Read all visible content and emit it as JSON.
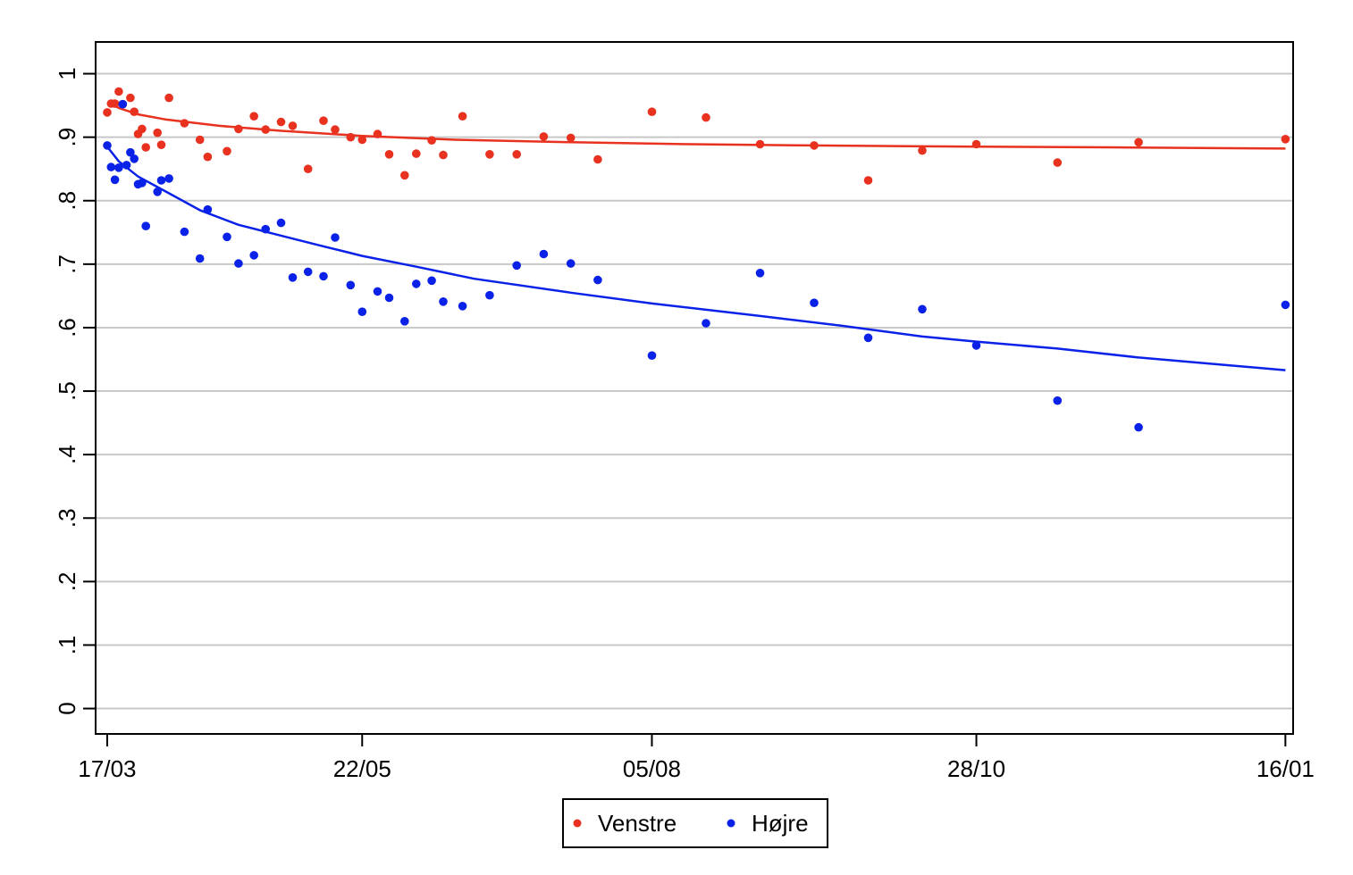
{
  "chart_data": {
    "type": "scatter",
    "title": "",
    "xlabel": "",
    "ylabel": "",
    "x_type": "date",
    "xlim": [
      "2020-03-14",
      "2021-01-18"
    ],
    "ylim": [
      -0.04,
      1.05
    ],
    "x_ticks": [
      {
        "date": "2020-03-17",
        "label": "17/03"
      },
      {
        "date": "2020-05-22",
        "label": "22/05"
      },
      {
        "date": "2020-08-05",
        "label": "05/08"
      },
      {
        "date": "2020-10-28",
        "label": "28/10"
      },
      {
        "date": "2021-01-16",
        "label": "16/01"
      }
    ],
    "y_ticks": [
      {
        "value": 0,
        "label": "0"
      },
      {
        "value": 0.1,
        "label": ".1"
      },
      {
        "value": 0.2,
        "label": ".2"
      },
      {
        "value": 0.3,
        "label": ".3"
      },
      {
        "value": 0.4,
        "label": ".4"
      },
      {
        "value": 0.5,
        "label": ".5"
      },
      {
        "value": 0.6,
        "label": ".6"
      },
      {
        "value": 0.7,
        "label": ".7"
      },
      {
        "value": 0.8,
        "label": ".8"
      },
      {
        "value": 0.9,
        "label": ".9"
      },
      {
        "value": 1,
        "label": "1"
      }
    ],
    "grid": true,
    "legend_position": "bottom",
    "series": [
      {
        "name": "Venstre",
        "color": "#e8321f",
        "points": [
          [
            "2020-03-17",
            0.939
          ],
          [
            "2020-03-18",
            0.953
          ],
          [
            "2020-03-19",
            0.953
          ],
          [
            "2020-03-20",
            0.972
          ],
          [
            "2020-03-21",
            0.952
          ],
          [
            "2020-03-23",
            0.962
          ],
          [
            "2020-03-24",
            0.94
          ],
          [
            "2020-03-25",
            0.905
          ],
          [
            "2020-03-26",
            0.913
          ],
          [
            "2020-03-27",
            0.884
          ],
          [
            "2020-03-30",
            0.907
          ],
          [
            "2020-03-31",
            0.888
          ],
          [
            "2020-04-02",
            0.962
          ],
          [
            "2020-04-06",
            0.922
          ],
          [
            "2020-04-10",
            0.896
          ],
          [
            "2020-04-12",
            0.869
          ],
          [
            "2020-04-17",
            0.878
          ],
          [
            "2020-04-20",
            0.913
          ],
          [
            "2020-04-24",
            0.933
          ],
          [
            "2020-04-27",
            0.912
          ],
          [
            "2020-05-01",
            0.924
          ],
          [
            "2020-05-04",
            0.918
          ],
          [
            "2020-05-08",
            0.85
          ],
          [
            "2020-05-12",
            0.926
          ],
          [
            "2020-05-15",
            0.912
          ],
          [
            "2020-05-19",
            0.9
          ],
          [
            "2020-05-22",
            0.896
          ],
          [
            "2020-05-26",
            0.905
          ],
          [
            "2020-05-29",
            0.873
          ],
          [
            "2020-06-02",
            0.84
          ],
          [
            "2020-06-05",
            0.874
          ],
          [
            "2020-06-09",
            0.895
          ],
          [
            "2020-06-12",
            0.872
          ],
          [
            "2020-06-17",
            0.933
          ],
          [
            "2020-06-24",
            0.873
          ],
          [
            "2020-07-01",
            0.873
          ],
          [
            "2020-07-08",
            0.901
          ],
          [
            "2020-07-15",
            0.899
          ],
          [
            "2020-07-22",
            0.865
          ],
          [
            "2020-08-05",
            0.94
          ],
          [
            "2020-08-19",
            0.931
          ],
          [
            "2020-09-02",
            0.889
          ],
          [
            "2020-09-16",
            0.887
          ],
          [
            "2020-09-30",
            0.832
          ],
          [
            "2020-10-14",
            0.879
          ],
          [
            "2020-10-28",
            0.889
          ],
          [
            "2020-11-18",
            0.86
          ],
          [
            "2020-12-09",
            0.892
          ],
          [
            "2021-01-16",
            0.897
          ]
        ],
        "fit": [
          [
            "2020-03-17",
            0.955
          ],
          [
            "2020-03-20",
            0.946
          ],
          [
            "2020-03-25",
            0.936
          ],
          [
            "2020-04-01",
            0.928
          ],
          [
            "2020-04-15",
            0.918
          ],
          [
            "2020-05-01",
            0.91
          ],
          [
            "2020-05-22",
            0.902
          ],
          [
            "2020-06-15",
            0.896
          ],
          [
            "2020-07-15",
            0.892
          ],
          [
            "2020-08-15",
            0.889
          ],
          [
            "2020-09-15",
            0.887
          ],
          [
            "2020-10-28",
            0.885
          ],
          [
            "2020-12-01",
            0.884
          ],
          [
            "2021-01-16",
            0.882
          ]
        ]
      },
      {
        "name": "Højre",
        "color": "#0a22e8",
        "points": [
          [
            "2020-03-17",
            0.887
          ],
          [
            "2020-03-18",
            0.853
          ],
          [
            "2020-03-19",
            0.833
          ],
          [
            "2020-03-20",
            0.852
          ],
          [
            "2020-03-21",
            0.952
          ],
          [
            "2020-03-22",
            0.856
          ],
          [
            "2020-03-23",
            0.876
          ],
          [
            "2020-03-24",
            0.866
          ],
          [
            "2020-03-25",
            0.826
          ],
          [
            "2020-03-26",
            0.828
          ],
          [
            "2020-03-27",
            0.76
          ],
          [
            "2020-03-30",
            0.814
          ],
          [
            "2020-03-31",
            0.832
          ],
          [
            "2020-04-02",
            0.835
          ],
          [
            "2020-04-06",
            0.751
          ],
          [
            "2020-04-10",
            0.709
          ],
          [
            "2020-04-12",
            0.786
          ],
          [
            "2020-04-17",
            0.743
          ],
          [
            "2020-04-20",
            0.701
          ],
          [
            "2020-04-24",
            0.714
          ],
          [
            "2020-04-27",
            0.755
          ],
          [
            "2020-05-01",
            0.765
          ],
          [
            "2020-05-04",
            0.679
          ],
          [
            "2020-05-08",
            0.688
          ],
          [
            "2020-05-12",
            0.681
          ],
          [
            "2020-05-15",
            0.742
          ],
          [
            "2020-05-19",
            0.667
          ],
          [
            "2020-05-22",
            0.625
          ],
          [
            "2020-05-26",
            0.657
          ],
          [
            "2020-05-29",
            0.647
          ],
          [
            "2020-06-02",
            0.61
          ],
          [
            "2020-06-05",
            0.669
          ],
          [
            "2020-06-09",
            0.674
          ],
          [
            "2020-06-12",
            0.641
          ],
          [
            "2020-06-17",
            0.634
          ],
          [
            "2020-06-24",
            0.651
          ],
          [
            "2020-07-01",
            0.698
          ],
          [
            "2020-07-08",
            0.716
          ],
          [
            "2020-07-15",
            0.701
          ],
          [
            "2020-07-22",
            0.675
          ],
          [
            "2020-08-05",
            0.556
          ],
          [
            "2020-08-19",
            0.607
          ],
          [
            "2020-09-02",
            0.686
          ],
          [
            "2020-09-16",
            0.639
          ],
          [
            "2020-09-30",
            0.584
          ],
          [
            "2020-10-14",
            0.629
          ],
          [
            "2020-10-28",
            0.572
          ],
          [
            "2020-11-18",
            0.485
          ],
          [
            "2020-12-09",
            0.443
          ],
          [
            "2021-01-16",
            0.636
          ]
        ],
        "fit": [
          [
            "2020-03-17",
            0.885
          ],
          [
            "2020-03-20",
            0.862
          ],
          [
            "2020-03-25",
            0.838
          ],
          [
            "2020-04-01",
            0.815
          ],
          [
            "2020-04-10",
            0.785
          ],
          [
            "2020-04-20",
            0.762
          ],
          [
            "2020-05-01",
            0.745
          ],
          [
            "2020-05-12",
            0.728
          ],
          [
            "2020-05-22",
            0.713
          ],
          [
            "2020-06-05",
            0.696
          ],
          [
            "2020-06-20",
            0.677
          ],
          [
            "2020-07-15",
            0.655
          ],
          [
            "2020-08-05",
            0.638
          ],
          [
            "2020-09-01",
            0.619
          ],
          [
            "2020-09-23",
            0.603
          ],
          [
            "2020-10-14",
            0.586
          ],
          [
            "2020-10-28",
            0.578
          ],
          [
            "2020-11-18",
            0.567
          ],
          [
            "2020-12-09",
            0.553
          ],
          [
            "2021-01-16",
            0.533
          ]
        ]
      }
    ]
  }
}
